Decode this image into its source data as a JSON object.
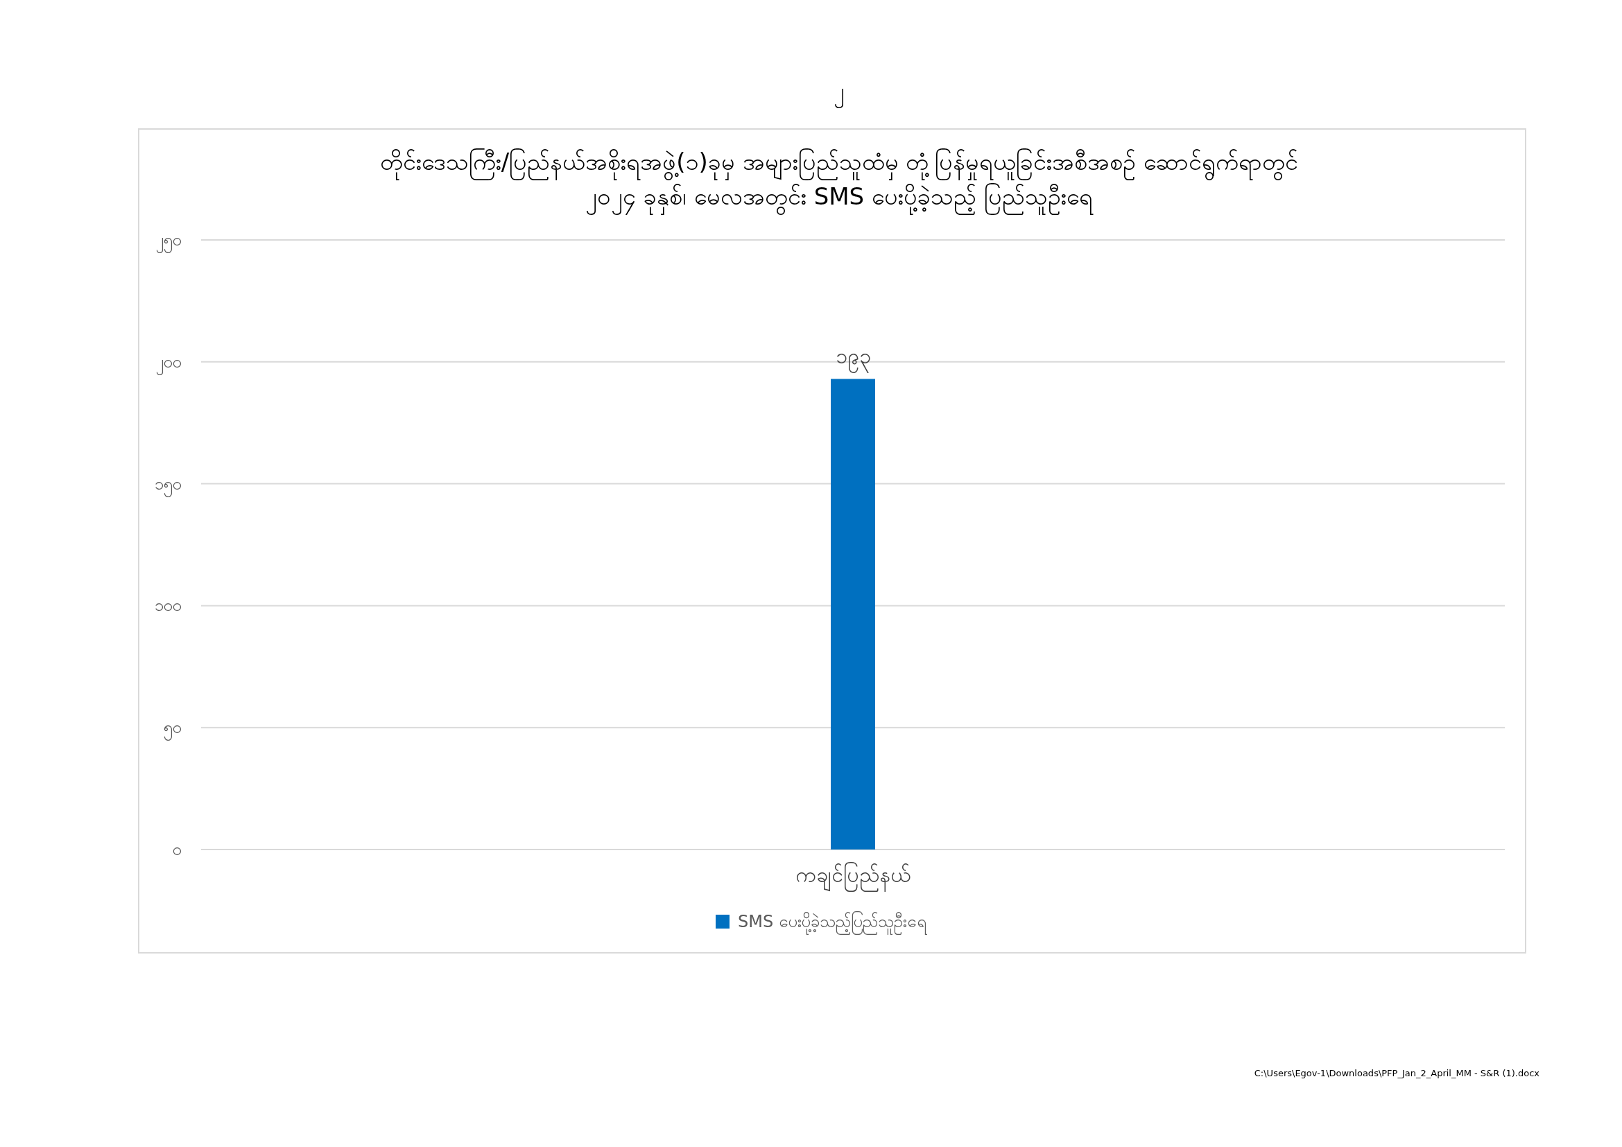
{
  "chart_data": {
    "type": "bar",
    "title": "တိုင်းဒေသကြီး/ပြည်နယ်အစိုးရအဖွဲ့(၁)ခုမှ အများပြည်သူထံမှ တုံ့ပြန်မှုရယူခြင်းအစီအစဉ် ဆောင်ရွက်ရာတွင်\n၂၀၂၄ ခုနှစ်၊ မေလအတွင်း SMS ပေးပို့ခဲ့သည့် ပြည်သူဦးရေ",
    "categories": [
      "ကချင်ပြည်နယ်"
    ],
    "series": [
      {
        "name": "SMS ပေးပို့ခဲ့သည့်ပြည်သူဦးရေ",
        "color": "#0070c0",
        "values": [
          193
        ],
        "value_labels": [
          "၁၉၃"
        ]
      }
    ],
    "ylim": [
      0,
      250
    ],
    "yticks": [
      {
        "value": 0,
        "label": "၀"
      },
      {
        "value": 50,
        "label": "၅၀"
      },
      {
        "value": 100,
        "label": "၁၀၀"
      },
      {
        "value": 150,
        "label": "၁၅၀"
      },
      {
        "value": 200,
        "label": "၂၀၀"
      },
      {
        "value": 250,
        "label": "၂၅၀"
      }
    ],
    "grid": "y",
    "legend": "bottom",
    "annotations": [
      "၂",
      "C:\\Users\\Egov-1\\Downloads\\PFP_Jan_2_April_MM - S&R (1).docx"
    ]
  }
}
